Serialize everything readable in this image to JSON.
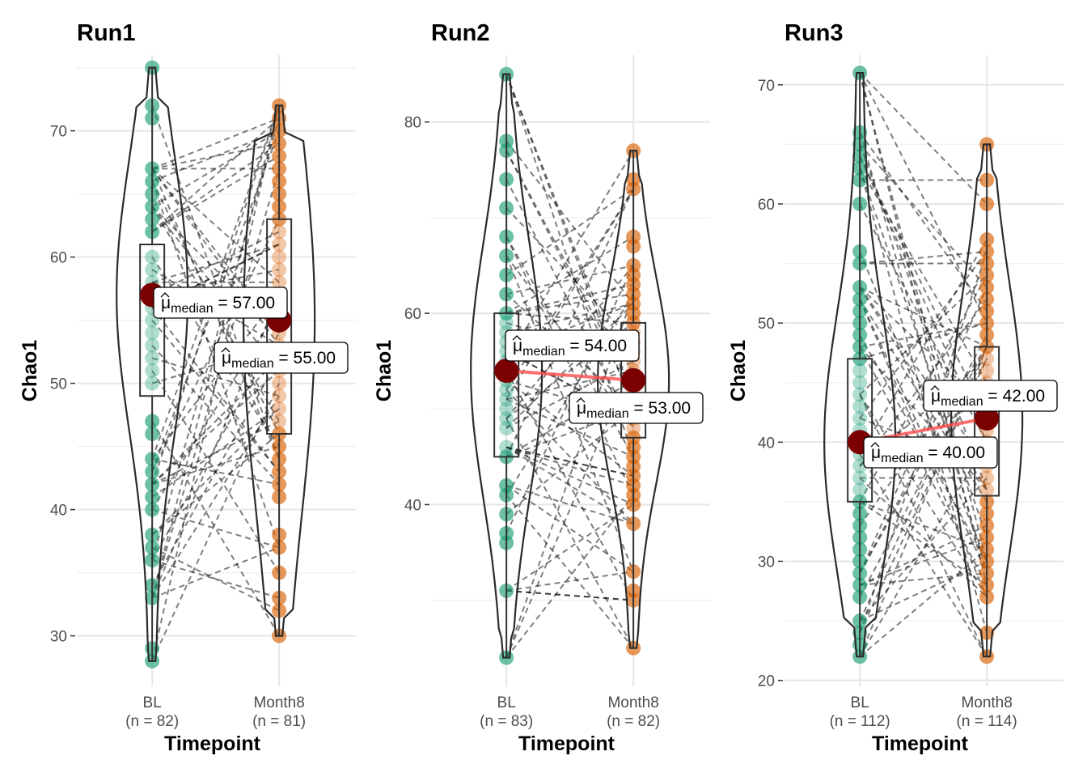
{
  "figure": {
    "y_axis_title": "Chao1",
    "x_axis_title": "Timepoint",
    "label_prefix": "median"
  },
  "colors": {
    "BL": "#1b9e77",
    "Month8": "#d95f02",
    "median_point": "#7b0000",
    "median_line": "#ff4d4d"
  },
  "chart_data": [
    {
      "type": "violin",
      "title": "Run1",
      "xlabel": "Timepoint",
      "ylabel": "Chao1",
      "ylim": [
        26,
        76
      ],
      "yticks": [
        30,
        40,
        50,
        60,
        70
      ],
      "categories": [
        "BL",
        "Month8"
      ],
      "counts": [
        "(n = 82)",
        "(n = 81)"
      ],
      "range": [
        [
          28,
          75
        ],
        [
          30,
          72
        ]
      ],
      "quartiles": [
        [
          49,
          57,
          61
        ],
        [
          46,
          55,
          63
        ]
      ],
      "medians": [
        57.0,
        55.0
      ],
      "median_labels": [
        "= 57.00",
        "= 55.00"
      ],
      "points": [
        [
          75,
          72,
          71,
          67,
          66,
          65,
          64,
          63,
          62,
          60,
          59,
          58,
          57,
          56,
          55,
          54,
          53,
          52,
          51,
          50,
          47,
          46,
          44,
          43,
          42,
          41,
          40,
          38,
          37,
          36,
          34,
          33,
          29,
          28
        ],
        [
          72,
          71,
          70,
          69,
          68,
          67,
          66,
          65,
          64,
          63,
          62,
          61,
          60,
          59,
          58,
          57,
          56,
          55,
          54,
          53,
          52,
          51,
          50,
          49,
          48,
          47,
          46,
          45,
          44,
          43,
          42,
          41,
          38,
          37,
          35,
          33,
          32,
          30
        ]
      ]
    },
    {
      "type": "violin",
      "title": "Run2",
      "xlabel": "Timepoint",
      "ylabel": "Chao1",
      "ylim": [
        21,
        87
      ],
      "yticks": [
        40,
        60,
        80
      ],
      "categories": [
        "BL",
        "Month8"
      ],
      "counts": [
        "(n = 83)",
        "(n = 82)"
      ],
      "range": [
        [
          24,
          85
        ],
        [
          25,
          77
        ]
      ],
      "quartiles": [
        [
          45,
          54,
          60
        ],
        [
          47,
          53,
          59
        ]
      ],
      "medians": [
        54.0,
        53.0
      ],
      "median_labels": [
        "= 54.00",
        "= 53.00"
      ],
      "points": [
        [
          85,
          78,
          77,
          74,
          71,
          68,
          66,
          64,
          62,
          60,
          59,
          58,
          57,
          56,
          55,
          54,
          53,
          52,
          51,
          50,
          49,
          48,
          46,
          45,
          42,
          41,
          39,
          37,
          36,
          31,
          24
        ],
        [
          77,
          74,
          73,
          68,
          67,
          65,
          64,
          63,
          62,
          61,
          60,
          59,
          58,
          57,
          56,
          55,
          54,
          53,
          52,
          51,
          50,
          49,
          48,
          47,
          46,
          45,
          44,
          43,
          42,
          41,
          40,
          38,
          33,
          31,
          30,
          25
        ]
      ]
    },
    {
      "type": "violin",
      "title": "Run3",
      "xlabel": "Timepoint",
      "ylabel": "Chao1",
      "ylim": [
        19.5,
        72.5
      ],
      "yticks": [
        20,
        30,
        40,
        50,
        60,
        70
      ],
      "categories": [
        "BL",
        "Month8"
      ],
      "counts": [
        "(n = 112)",
        "(n = 114)"
      ],
      "range": [
        [
          22,
          71
        ],
        [
          22,
          65
        ]
      ],
      "quartiles": [
        [
          35,
          40,
          47
        ],
        [
          35.5,
          42,
          48
        ]
      ],
      "medians": [
        40.0,
        42.0
      ],
      "median_labels": [
        "= 40.00",
        "= 42.00"
      ],
      "points": [
        [
          71,
          66,
          65,
          64,
          63,
          62,
          60,
          56,
          55,
          53,
          52,
          51,
          50,
          49,
          48,
          47,
          46,
          45,
          44,
          43,
          42,
          41,
          40,
          39,
          38,
          37,
          36,
          35,
          34,
          33,
          32,
          31,
          30,
          29,
          28,
          27,
          25,
          24,
          23,
          22
        ],
        [
          65,
          62,
          60,
          57,
          56,
          55,
          54,
          53,
          52,
          51,
          50,
          49,
          48,
          47,
          46,
          45,
          44,
          43,
          42,
          41,
          40,
          39,
          38,
          37,
          36,
          35,
          34,
          33,
          32,
          31,
          30,
          29,
          28,
          27,
          24,
          22
        ]
      ]
    }
  ]
}
